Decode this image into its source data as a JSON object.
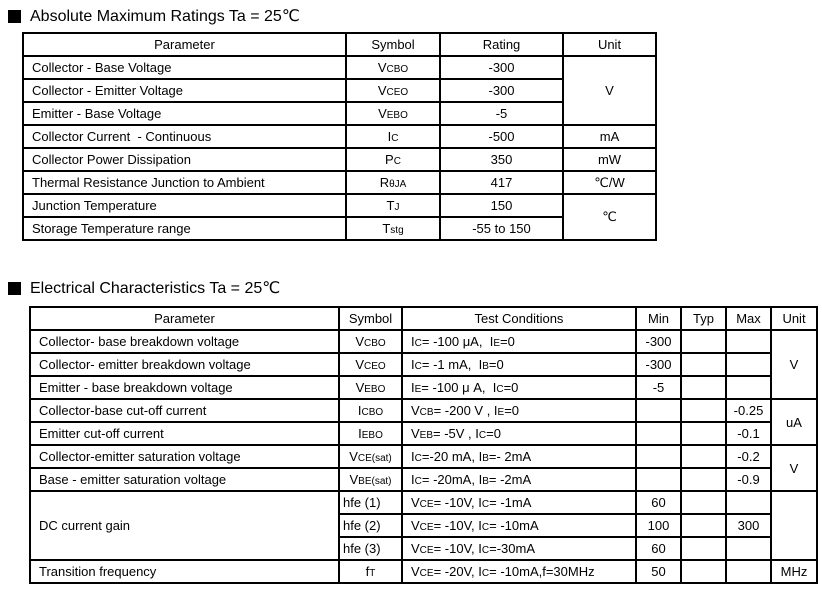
{
  "s1": {
    "title": "Absolute Maximum Ratings Ta = 25℃",
    "headers": [
      "Parameter",
      "Symbol",
      "Rating",
      "Unit"
    ],
    "rows": [
      {
        "param": "Collector - Base Voltage",
        "sym": [
          [
            "n",
            "V"
          ],
          [
            "s",
            "CBO"
          ]
        ],
        "rating": "-300",
        "unit": "V"
      },
      {
        "param": "Collector - Emitter Voltage",
        "sym": [
          [
            "n",
            "V"
          ],
          [
            "s",
            "CEO"
          ]
        ],
        "rating": "-300"
      },
      {
        "param": "Emitter - Base Voltage",
        "sym": [
          [
            "n",
            "V"
          ],
          [
            "s",
            "EBO"
          ]
        ],
        "rating": "-5"
      },
      {
        "param": "Collector Current  - Continuous",
        "sym": [
          [
            "n",
            "I"
          ],
          [
            "s",
            "C"
          ]
        ],
        "rating": "-500",
        "unit": "mA"
      },
      {
        "param": "Collector Power Dissipation",
        "sym": [
          [
            "n",
            "P"
          ],
          [
            "s",
            "C"
          ]
        ],
        "rating": "350",
        "unit": "mW"
      },
      {
        "param": "Thermal Resistance Junction to Ambient",
        "sym": [
          [
            "n",
            "R"
          ],
          [
            "s",
            "θJA"
          ]
        ],
        "rating": "417",
        "unit": "℃/W"
      },
      {
        "param": "Junction Temperature",
        "sym": [
          [
            "n",
            "T"
          ],
          [
            "s",
            "J"
          ]
        ],
        "rating": "150",
        "unit": "℃"
      },
      {
        "param": "Storage Temperature range",
        "sym": [
          [
            "n",
            "T"
          ],
          [
            "s",
            "stg"
          ]
        ],
        "rating": "-55 to 150"
      }
    ]
  },
  "s2": {
    "title": "Electrical Characteristics Ta = 25℃",
    "headers": [
      "Parameter",
      "Symbol",
      "Test Conditions",
      "Min",
      "Typ",
      "Max",
      "Unit"
    ],
    "rows": [
      {
        "param": "Collector- base breakdown voltage",
        "sym": [
          [
            "n",
            "V"
          ],
          [
            "s",
            "CBO"
          ]
        ],
        "cond": [
          [
            "n",
            "I"
          ],
          [
            "s",
            "C"
          ],
          [
            "n",
            "= -100 μA,  I"
          ],
          [
            "s",
            "E"
          ],
          [
            "n",
            "=0"
          ]
        ],
        "min": "-300",
        "unit": "V"
      },
      {
        "param": "Collector- emitter breakdown voltage",
        "sym": [
          [
            "n",
            "V"
          ],
          [
            "s",
            "CEO"
          ]
        ],
        "cond": [
          [
            "n",
            "I"
          ],
          [
            "s",
            "C"
          ],
          [
            "n",
            "= -1 mA,  I"
          ],
          [
            "s",
            "B"
          ],
          [
            "n",
            "=0"
          ]
        ],
        "min": "-300"
      },
      {
        "param": "Emitter - base breakdown voltage",
        "sym": [
          [
            "n",
            "V"
          ],
          [
            "s",
            "EBO"
          ]
        ],
        "cond": [
          [
            "n",
            "I"
          ],
          [
            "s",
            "E"
          ],
          [
            "n",
            "= -100 μ A,  I"
          ],
          [
            "s",
            "C"
          ],
          [
            "n",
            "=0"
          ]
        ],
        "min": "-5"
      },
      {
        "param": "Collector-base cut-off current",
        "sym": [
          [
            "n",
            "I"
          ],
          [
            "s",
            "CBO"
          ]
        ],
        "cond": [
          [
            "n",
            "V"
          ],
          [
            "s",
            "CB"
          ],
          [
            "n",
            "= -200 V , I"
          ],
          [
            "s",
            "E"
          ],
          [
            "n",
            "=0"
          ]
        ],
        "max": "-0.25",
        "unit": "uA"
      },
      {
        "param": "Emitter cut-off current",
        "sym": [
          [
            "n",
            "I"
          ],
          [
            "s",
            "EBO"
          ]
        ],
        "cond": [
          [
            "n",
            "V"
          ],
          [
            "s",
            "EB"
          ],
          [
            "n",
            "= -5V , I"
          ],
          [
            "s",
            "C"
          ],
          [
            "n",
            "=0"
          ]
        ],
        "max": "-0.1"
      },
      {
        "param": "Collector-emitter saturation voltage",
        "sym": [
          [
            "n",
            "V"
          ],
          [
            "s",
            "CE(sat)"
          ]
        ],
        "cond": [
          [
            "n",
            "I"
          ],
          [
            "s",
            "C"
          ],
          [
            "n",
            "=-20 mA, I"
          ],
          [
            "s",
            "B"
          ],
          [
            "n",
            "=- 2mA"
          ]
        ],
        "max": "-0.2",
        "unit": "V"
      },
      {
        "param": "Base - emitter saturation voltage",
        "sym": [
          [
            "n",
            "V"
          ],
          [
            "s",
            "BE(sat)"
          ]
        ],
        "cond": [
          [
            "n",
            "I"
          ],
          [
            "s",
            "C"
          ],
          [
            "n",
            "= -20mA, I"
          ],
          [
            "s",
            "B"
          ],
          [
            "n",
            "= -2mA"
          ]
        ],
        "max": "-0.9"
      },
      {
        "param": "DC current gain",
        "sym": [
          [
            "n",
            "hfe (1)"
          ]
        ],
        "cond": [
          [
            "n",
            "V"
          ],
          [
            "s",
            "CE"
          ],
          [
            "n",
            "= -10V, I"
          ],
          [
            "s",
            "C"
          ],
          [
            "n",
            "= -1mA"
          ]
        ],
        "min": "60"
      },
      {
        "sym": [
          [
            "n",
            "hfe (2)"
          ]
        ],
        "cond": [
          [
            "n",
            "V"
          ],
          [
            "s",
            "CE"
          ],
          [
            "n",
            "= -10V, I"
          ],
          [
            "s",
            "C"
          ],
          [
            "n",
            "= -10mA"
          ]
        ],
        "min": "100",
        "max": "300"
      },
      {
        "sym": [
          [
            "n",
            "hfe (3)"
          ]
        ],
        "cond": [
          [
            "n",
            "V"
          ],
          [
            "s",
            "CE"
          ],
          [
            "n",
            "= -10V, I"
          ],
          [
            "s",
            "C"
          ],
          [
            "n",
            "=-30mA"
          ]
        ],
        "min": "60"
      },
      {
        "param": "Transition frequency",
        "sym": [
          [
            "n",
            "f"
          ],
          [
            "s",
            "T"
          ]
        ],
        "cond": [
          [
            "n",
            "V"
          ],
          [
            "s",
            "CE"
          ],
          [
            "n",
            "= -20V, I"
          ],
          [
            "s",
            "C"
          ],
          [
            "n",
            "= -10mA,f=30MHz"
          ]
        ],
        "min": "50",
        "unit": "MHz"
      }
    ]
  }
}
